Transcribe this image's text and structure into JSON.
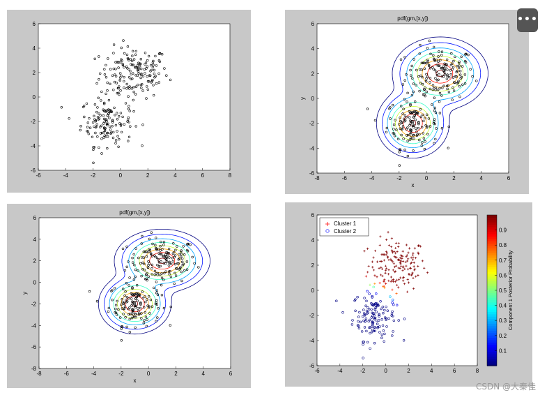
{
  "ui": {
    "more_button": "•••",
    "watermark": "CSDN @大秦佳"
  },
  "chart_data": [
    {
      "type": "scatter",
      "title": "",
      "xlabel": "",
      "ylabel": "",
      "xlim": [
        -6,
        8
      ],
      "ylim": [
        -6,
        6
      ],
      "xticks": [
        "-6",
        "-4",
        "-2",
        "0",
        "2",
        "4",
        "6",
        "8"
      ],
      "yticks": [
        "-6",
        "-4",
        "-2",
        "0",
        "2",
        "4",
        "6"
      ],
      "points": {
        "cluster_a": {
          "mean": [
            1,
            2
          ],
          "sd": [
            1.25,
            1.05
          ],
          "n": 160
        },
        "cluster_b": {
          "mean": [
            -1,
            -2
          ],
          "sd": [
            0.95,
            1.0
          ],
          "n": 140
        }
      },
      "marker_color": "#000000"
    },
    {
      "type": "contour",
      "title": "pdf(gm,[x,y])",
      "xlabel": "x",
      "ylabel": "y",
      "xlim": [
        -8,
        6
      ],
      "ylim": [
        -6,
        6
      ],
      "xticks": [
        "-8",
        "-6",
        "-4",
        "-2",
        "0",
        "2",
        "4",
        "6"
      ],
      "yticks": [
        "-6",
        "-4",
        "-2",
        "0",
        "2",
        "4",
        "6"
      ],
      "components": [
        {
          "mean": [
            1,
            2
          ],
          "sd": [
            1.25,
            1.05
          ]
        },
        {
          "mean": [
            -1,
            -2
          ],
          "sd": [
            0.95,
            1.0
          ]
        }
      ],
      "levels": 8
    },
    {
      "type": "contour",
      "title": "pdf(gm,[x,y])",
      "xlabel": "x",
      "ylabel": "y",
      "xlim": [
        -8,
        6
      ],
      "ylim": [
        -8,
        6
      ],
      "xticks": [
        "-8",
        "-6",
        "-4",
        "-2",
        "0",
        "2",
        "4",
        "6"
      ],
      "yticks": [
        "-8",
        "-6",
        "-4",
        "-2",
        "0",
        "2",
        "4",
        "6"
      ],
      "components": [
        {
          "mean": [
            1,
            2
          ],
          "sd": [
            1.25,
            1.05
          ]
        },
        {
          "mean": [
            -1,
            -2
          ],
          "sd": [
            0.95,
            1.0
          ]
        }
      ],
      "levels": 8
    },
    {
      "type": "scatter",
      "title": "",
      "xlabel": "",
      "ylabel": "",
      "xlim": [
        -6,
        8
      ],
      "ylim": [
        -6,
        6
      ],
      "xticks": [
        "-6",
        "-4",
        "-2",
        "0",
        "2",
        "4",
        "6",
        "8"
      ],
      "yticks": [
        "-6",
        "-4",
        "-2",
        "0",
        "2",
        "4",
        "6"
      ],
      "legend": {
        "position": "top-left",
        "entries": [
          "Cluster 1",
          "Cluster 2"
        ]
      },
      "colorbar": {
        "label": "Component 1 Posterior Probability",
        "ticks": [
          "0.1",
          "0.2",
          "0.3",
          "0.4",
          "0.5",
          "0.6",
          "0.7",
          "0.8",
          "0.9"
        ],
        "range": [
          0,
          1
        ],
        "colormap": "jet"
      },
      "series_colors": {
        "Cluster 1": "#ff0000",
        "Cluster 2": "#0000ff"
      }
    }
  ]
}
